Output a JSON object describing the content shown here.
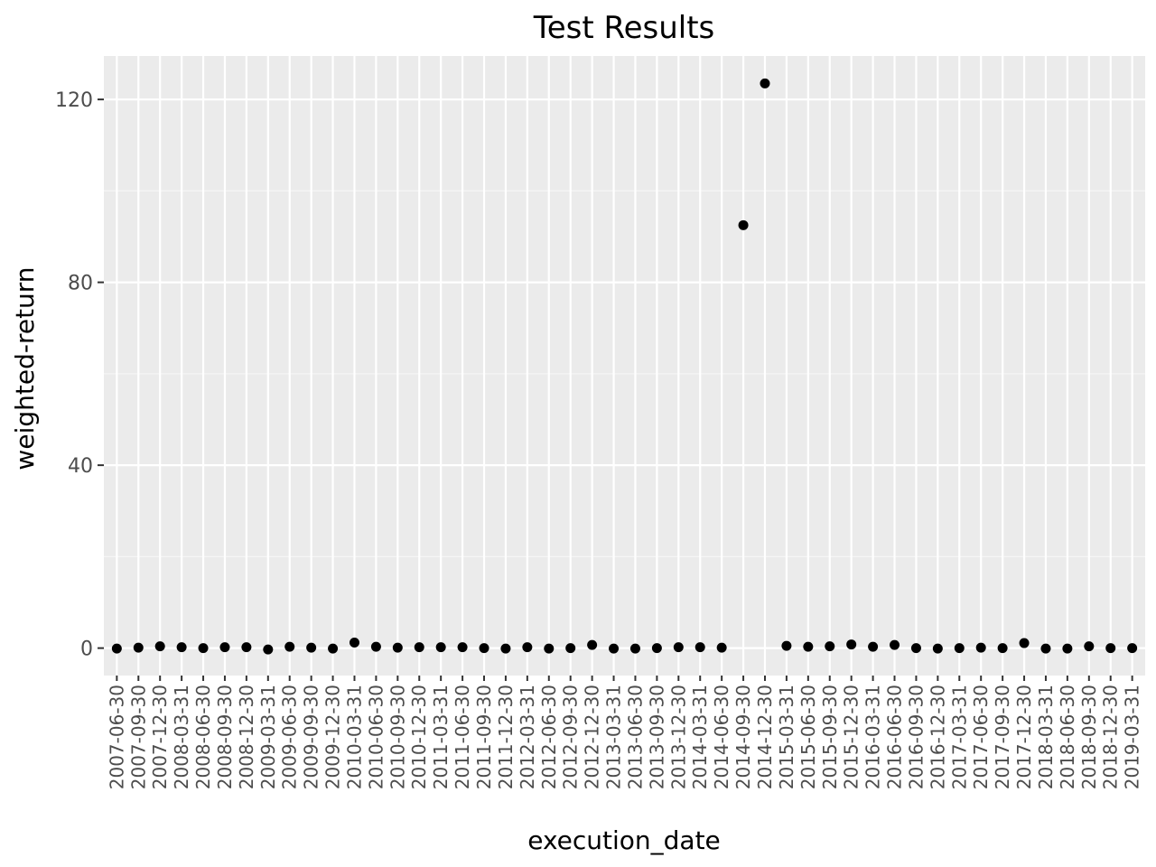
{
  "chart_data": {
    "type": "scatter",
    "title": "Test Results",
    "xlabel": "execution_date",
    "ylabel": "weighted-return",
    "x": [
      "2007-06-30",
      "2007-09-30",
      "2007-12-30",
      "2008-03-31",
      "2008-06-30",
      "2008-09-30",
      "2008-12-30",
      "2009-03-31",
      "2009-06-30",
      "2009-09-30",
      "2009-12-30",
      "2010-03-31",
      "2010-06-30",
      "2010-09-30",
      "2010-12-30",
      "2011-03-31",
      "2011-06-30",
      "2011-09-30",
      "2011-12-30",
      "2012-03-31",
      "2012-06-30",
      "2012-09-30",
      "2012-12-30",
      "2013-03-31",
      "2013-06-30",
      "2013-09-30",
      "2013-12-30",
      "2014-03-31",
      "2014-06-30",
      "2014-09-30",
      "2014-12-30",
      "2015-03-31",
      "2015-06-30",
      "2015-09-30",
      "2015-12-30",
      "2016-03-31",
      "2016-06-30",
      "2016-09-30",
      "2016-12-30",
      "2017-03-31",
      "2017-06-30",
      "2017-09-30",
      "2017-12-30",
      "2018-03-31",
      "2018-06-30",
      "2018-09-30",
      "2018-12-30",
      "2019-03-31"
    ],
    "x_tick_labels": [
      "2007-06-30",
      "2007-09-30",
      "2007-12-30",
      "2008-03-31",
      "2008-06-30",
      "2008-09-30",
      "2008-12-30",
      "2009-03-31",
      "2009-06-30",
      "2009-09-30",
      "2009-12-30",
      "2010-03-31",
      "2010-06-30",
      "2010-09-30",
      "2010-12-30",
      "2011-03-31",
      "2011-06-30",
      "2011-09-30",
      "2011-12-30",
      "2012-03-31",
      "2012-06-30",
      "2012-09-30",
      "2012-12-30",
      "2013-03-31",
      "2013-06-30",
      "2013-09-30",
      "2013-12-30",
      "2014-03-31",
      "2014-06-30",
      "2014-09-30",
      "2014-12-30",
      "2015-03-31",
      "2015-06-30",
      "2015-09-30",
      "2015-12-30",
      "2016-03-31",
      "2016-06-30",
      "2016-09-30",
      "2016-12-30",
      "2017-03-31",
      "2017-06-30",
      "2017-09-30",
      "2017-12-30",
      "2018-03-31",
      "2018-06-30",
      "2018-09-30",
      "2018-12-30",
      "2019-03-31"
    ],
    "y": [
      -0.1,
      0.1,
      0.4,
      0.2,
      0.0,
      0.2,
      0.2,
      -0.3,
      0.3,
      0.1,
      -0.1,
      1.2,
      0.3,
      0.1,
      0.2,
      0.2,
      0.2,
      0.0,
      -0.1,
      0.2,
      -0.1,
      0.0,
      0.7,
      -0.1,
      -0.1,
      0.0,
      0.2,
      0.2,
      0.1,
      92.5,
      123.5,
      0.5,
      0.3,
      0.4,
      0.8,
      0.3,
      0.7,
      0.0,
      -0.1,
      0.0,
      0.1,
      0.0,
      1.1,
      -0.1,
      -0.1,
      0.4,
      0.0,
      0.0
    ],
    "ylim": [
      -6.0,
      129.5
    ],
    "y_ticks": [
      0,
      40,
      80,
      120
    ],
    "y_tick_labels": [
      "0",
      "40",
      "80",
      "120"
    ],
    "grid": true,
    "legend": "none",
    "colors": {
      "panel_background": "#ebebeb",
      "grid_major": "#ffffff",
      "grid_minor": "#f5f5f5",
      "point": "#000000",
      "tick_label": "#4d4d4d",
      "tick_mark": "#333333",
      "text": "#000000"
    }
  }
}
